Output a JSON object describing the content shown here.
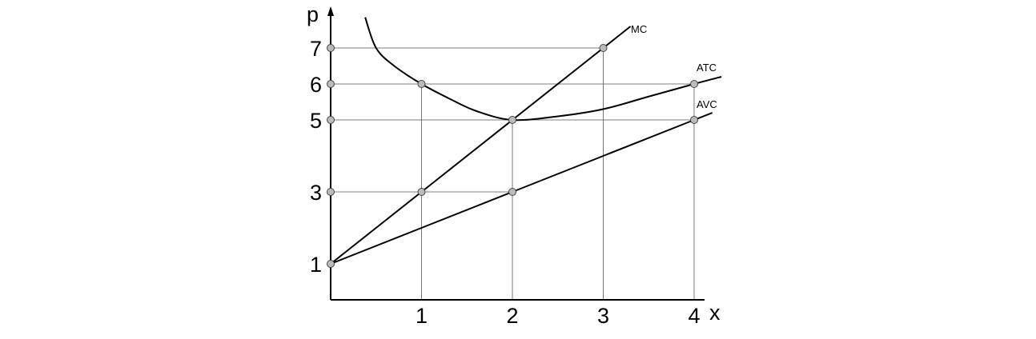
{
  "chart_data": {
    "type": "line",
    "title": "",
    "xlabel": "x",
    "ylabel": "p",
    "xlim": [
      0,
      4.3
    ],
    "ylim": [
      0,
      7.9
    ],
    "x_ticks": [
      "1",
      "2",
      "3",
      "4"
    ],
    "y_ticks": [
      "1",
      "3",
      "5",
      "6",
      "7"
    ],
    "series": [
      {
        "name": "MC",
        "points": [
          [
            0,
            1
          ],
          [
            1,
            3
          ],
          [
            2,
            5
          ],
          [
            3,
            7
          ],
          [
            3.3,
            7.6
          ]
        ],
        "smooth": false
      },
      {
        "name": "ATC",
        "points": [
          [
            0.38,
            7.85
          ],
          [
            0.5,
            7.0
          ],
          [
            0.7,
            6.5
          ],
          [
            1,
            6
          ],
          [
            1.3,
            5.6
          ],
          [
            1.6,
            5.25
          ],
          [
            2,
            5
          ],
          [
            2.5,
            5.1
          ],
          [
            3,
            5.3
          ],
          [
            3.5,
            5.65
          ],
          [
            4,
            6
          ],
          [
            4.3,
            6.2
          ]
        ],
        "smooth": true
      },
      {
        "name": "AVC",
        "points": [
          [
            0,
            1
          ],
          [
            1,
            2
          ],
          [
            2,
            3
          ],
          [
            3,
            4
          ],
          [
            4,
            5
          ],
          [
            4.2,
            5.2
          ]
        ],
        "smooth": false
      }
    ],
    "marked_points": [
      [
        1,
        3
      ],
      [
        2,
        5
      ],
      [
        3,
        7
      ],
      [
        1,
        6
      ],
      [
        4,
        6
      ],
      [
        2,
        3
      ],
      [
        4,
        5
      ],
      [
        0,
        1
      ],
      [
        0,
        3
      ],
      [
        0,
        5
      ],
      [
        0,
        6
      ],
      [
        0,
        7
      ]
    ],
    "guide_lines": {
      "horizontal": [
        {
          "y": 7,
          "x_to": 3
        },
        {
          "y": 6,
          "x_to": 4
        },
        {
          "y": 5,
          "x_to": 4
        },
        {
          "y": 3,
          "x_to": 2
        }
      ],
      "vertical": [
        {
          "x": 1,
          "y_to": 6
        },
        {
          "x": 2,
          "y_to": 5
        },
        {
          "x": 3,
          "y_to": 7
        },
        {
          "x": 4,
          "y_to": 6
        }
      ]
    },
    "colors": {
      "curve": "#000000",
      "guide": "#555555",
      "marker_fill": "#bbbbbb",
      "marker_stroke": "#444444"
    }
  }
}
